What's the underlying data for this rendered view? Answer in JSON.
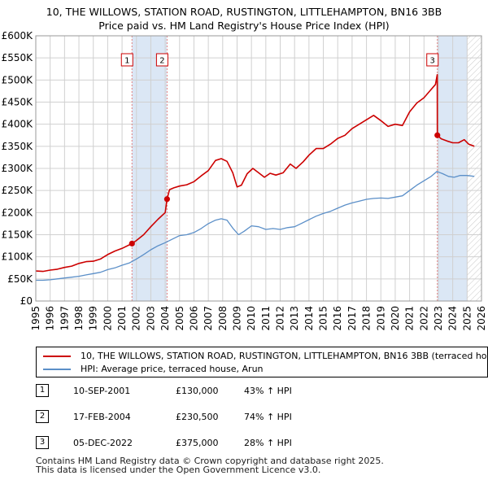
{
  "title_line1": "10, THE WILLOWS, STATION ROAD, RUSTINGTON, LITTLEHAMPTON, BN16 3BB",
  "title_line2": "Price paid vs. HM Land Registry's House Price Index (HPI)",
  "colors": {
    "property": "#cc0000",
    "hpi": "#5b8fc8",
    "shade": "#dbe7f5",
    "grid": "#d0d0d0",
    "marker": "#cc0000",
    "vline": "#e08080"
  },
  "legend": {
    "property_label": "10, THE WILLOWS, STATION ROAD, RUSTINGTON, LITTLEHAMPTON, BN16 3BB (terraced house)",
    "hpi_label": "HPI: Average price, terraced house, Arun"
  },
  "sales": [
    {
      "num": "1",
      "date": "10-SEP-2001",
      "price": "£130,000",
      "hpi": "43% ↑ HPI"
    },
    {
      "num": "2",
      "date": "17-FEB-2004",
      "price": "£230,500",
      "hpi": "74% ↑ HPI"
    },
    {
      "num": "3",
      "date": "05-DEC-2022",
      "price": "£375,000",
      "hpi": "28% ↑ HPI"
    }
  ],
  "footer_line1": "Contains HM Land Registry data © Crown copyright and database right 2025.",
  "footer_line2": "This data is licensed under the Open Government Licence v3.0.",
  "chart_data": {
    "type": "line",
    "title": "10, THE WILLOWS, STATION ROAD, RUSTINGTON, LITTLEHAMPTON, BN16 3BB — Price paid vs. HM Land Registry's House Price Index (HPI)",
    "xlim": [
      1995,
      2026
    ],
    "ylim": [
      0,
      600000
    ],
    "x_ticks": [
      1995,
      1996,
      1997,
      1998,
      1999,
      2000,
      2001,
      2002,
      2003,
      2004,
      2005,
      2006,
      2007,
      2008,
      2009,
      2010,
      2011,
      2012,
      2013,
      2014,
      2015,
      2016,
      2017,
      2018,
      2019,
      2020,
      2021,
      2022,
      2023,
      2024,
      2025,
      2026
    ],
    "y_ticks": [
      0,
      50000,
      100000,
      150000,
      200000,
      250000,
      300000,
      350000,
      400000,
      450000,
      500000,
      550000,
      600000
    ],
    "y_tick_labels": [
      "£0",
      "£50K",
      "£100K",
      "£150K",
      "£200K",
      "£250K",
      "£300K",
      "£350K",
      "£400K",
      "£450K",
      "£500K",
      "£550K",
      "£600K"
    ],
    "grid": true,
    "shaded_ranges": [
      [
        2001.69,
        2004.13
      ],
      [
        2022.93,
        2025.0
      ]
    ],
    "series": [
      {
        "name": "10, THE WILLOWS, STATION ROAD, RUSTINGTON, LITTLEHAMPTON, BN16 3BB (terraced house)",
        "x": [
          1995,
          1995.5,
          1996,
          1996.5,
          1997,
          1997.5,
          1998,
          1998.5,
          1999,
          1999.5,
          2000,
          2000.5,
          2001,
          2001.69,
          2002,
          2002.5,
          2003,
          2003.5,
          2004.0,
          2004.13,
          2004.3,
          2004.6,
          2005,
          2005.5,
          2006,
          2006.5,
          2007,
          2007.5,
          2007.9,
          2008.3,
          2008.7,
          2009.0,
          2009.3,
          2009.7,
          2010.1,
          2010.5,
          2010.9,
          2011.3,
          2011.7,
          2012.2,
          2012.7,
          2013.1,
          2013.6,
          2014.0,
          2014.5,
          2015.0,
          2015.5,
          2016.0,
          2016.5,
          2017.0,
          2017.5,
          2018.0,
          2018.5,
          2019.0,
          2019.5,
          2020.0,
          2020.5,
          2021.0,
          2021.5,
          2022.0,
          2022.4,
          2022.8,
          2022.92,
          2022.93,
          2023.2,
          2023.6,
          2024.0,
          2024.4,
          2024.8,
          2025.1,
          2025.5
        ],
        "values": [
          68000,
          67000,
          70000,
          72000,
          76000,
          79000,
          85000,
          89000,
          90000,
          95000,
          105000,
          113000,
          119000,
          130000,
          137000,
          150000,
          168000,
          185000,
          200000,
          230500,
          252000,
          256000,
          260000,
          263000,
          270000,
          283000,
          295000,
          318000,
          322000,
          316000,
          290000,
          258000,
          262000,
          288000,
          300000,
          290000,
          280000,
          289000,
          285000,
          290000,
          310000,
          300000,
          315000,
          330000,
          345000,
          345000,
          355000,
          368000,
          375000,
          390000,
          400000,
          410000,
          420000,
          408000,
          395000,
          400000,
          397000,
          428000,
          448000,
          460000,
          475000,
          490000,
          512000,
          375000,
          367000,
          362000,
          358000,
          358000,
          365000,
          355000,
          350000
        ]
      },
      {
        "name": "HPI: Average price, terraced house, Arun",
        "x": [
          1995,
          1995.5,
          1996,
          1996.5,
          1997,
          1997.5,
          1998,
          1998.5,
          1999,
          1999.5,
          2000,
          2000.5,
          2001,
          2001.5,
          2002,
          2002.5,
          2003,
          2003.5,
          2004,
          2004.5,
          2005,
          2005.5,
          2006,
          2006.5,
          2007,
          2007.5,
          2007.9,
          2008.3,
          2008.7,
          2009.1,
          2009.5,
          2010.0,
          2010.5,
          2011.0,
          2011.5,
          2012.0,
          2012.5,
          2013.0,
          2013.5,
          2014.0,
          2014.5,
          2015.0,
          2015.5,
          2016.0,
          2016.5,
          2017.0,
          2017.5,
          2018.0,
          2018.5,
          2019.0,
          2019.5,
          2020.0,
          2020.5,
          2021.0,
          2021.5,
          2022.0,
          2022.5,
          2022.9,
          2023.3,
          2023.7,
          2024.1,
          2024.5,
          2025.0,
          2025.5
        ],
        "values": [
          47000,
          47000,
          48000,
          50000,
          52000,
          54000,
          56000,
          59000,
          62000,
          65000,
          71000,
          75000,
          81000,
          86000,
          95000,
          105000,
          116000,
          125000,
          132000,
          140000,
          148000,
          150000,
          155000,
          164000,
          175000,
          183000,
          186000,
          183000,
          165000,
          150000,
          158000,
          170000,
          168000,
          162000,
          164000,
          162000,
          166000,
          168000,
          176000,
          184000,
          192000,
          198000,
          203000,
          210000,
          217000,
          222000,
          226000,
          230000,
          232000,
          233000,
          232000,
          235000,
          238000,
          250000,
          262000,
          272000,
          282000,
          293000,
          288000,
          282000,
          280000,
          284000,
          284000,
          282000
        ]
      }
    ],
    "sale_points": [
      {
        "label": "1",
        "x": 2001.69,
        "y": 130000
      },
      {
        "label": "2",
        "x": 2004.13,
        "y": 230500
      },
      {
        "label": "3",
        "x": 2022.93,
        "y": 375000
      }
    ]
  }
}
